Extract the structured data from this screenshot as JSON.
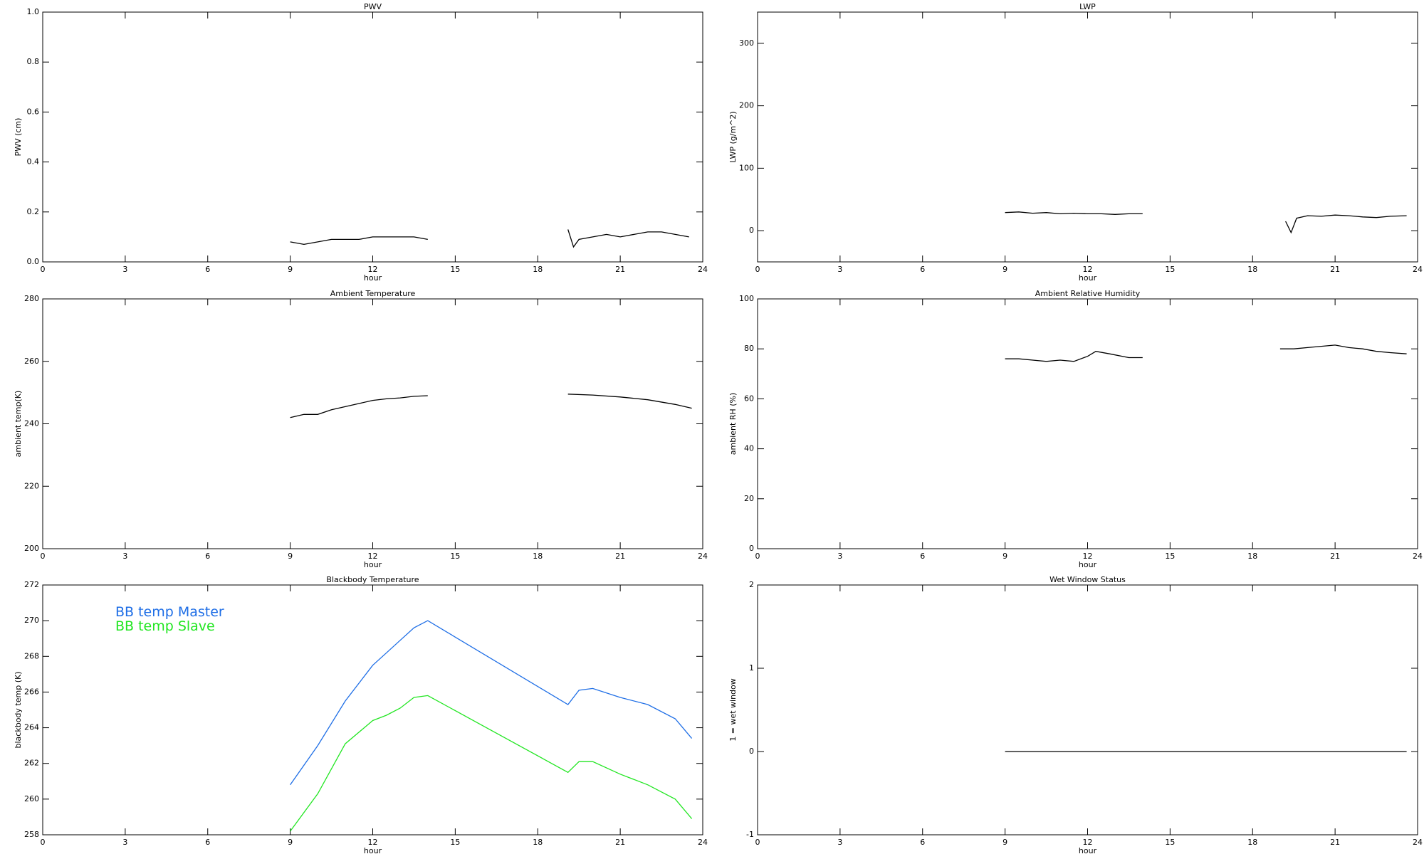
{
  "chart_data": [
    {
      "type": "line",
      "title": "PWV",
      "xlabel": "hour",
      "ylabel": "PWV (cm)",
      "xlim": [
        0,
        24
      ],
      "xticks": [
        0,
        3,
        6,
        9,
        12,
        15,
        18,
        21,
        24
      ],
      "ylim": [
        0,
        1
      ],
      "yticks": [
        {
          "value": 0,
          "label": "0.0"
        },
        0.2,
        0.4,
        0.6,
        0.8,
        {
          "value": 1,
          "label": "1.0"
        }
      ],
      "x": [
        9,
        9.5,
        10,
        10.5,
        11,
        11.5,
        12,
        12.5,
        13,
        13.5,
        14,
        16,
        19.1,
        19.3,
        19.5,
        20,
        20.5,
        21,
        21.5,
        22,
        22.5,
        23,
        23.5
      ],
      "series": [
        {
          "color": "#000000",
          "values": [
            0.08,
            0.07,
            0.08,
            0.09,
            0.09,
            0.09,
            0.1,
            0.1,
            0.1,
            0.1,
            0.09,
            null,
            0.13,
            0.06,
            0.09,
            0.1,
            0.11,
            0.1,
            0.11,
            0.12,
            0.12,
            0.11,
            0.1
          ]
        }
      ]
    },
    {
      "type": "line",
      "title": "LWP",
      "xlabel": "hour",
      "ylabel": "LWP (g/m^2)",
      "xlim": [
        0,
        24
      ],
      "xticks": [
        0,
        3,
        6,
        9,
        12,
        15,
        18,
        21,
        24
      ],
      "ylim": [
        -50,
        350
      ],
      "yticks": [
        0,
        100,
        200,
        300
      ],
      "x": [
        9,
        9.5,
        10,
        10.5,
        11,
        11.5,
        12,
        12.5,
        13,
        13.5,
        14,
        16,
        19.2,
        19.4,
        19.6,
        20,
        20.5,
        21,
        21.5,
        22,
        22.5,
        23,
        23.6
      ],
      "series": [
        {
          "color": "#000000",
          "values": [
            29,
            30,
            28,
            29,
            27,
            28,
            27,
            27,
            26,
            27,
            27,
            null,
            15,
            -3,
            20,
            24,
            23,
            25,
            24,
            22,
            21,
            23,
            24
          ]
        }
      ]
    },
    {
      "type": "line",
      "title": "Ambient Temperature",
      "xlabel": "hour",
      "ylabel": "ambient temp(K)",
      "xlim": [
        0,
        24
      ],
      "xticks": [
        0,
        3,
        6,
        9,
        12,
        15,
        18,
        21,
        24
      ],
      "ylim": [
        200,
        280
      ],
      "yticks": [
        200,
        220,
        240,
        260,
        280
      ],
      "x": [
        9,
        9.5,
        10,
        10.5,
        11,
        11.5,
        12,
        12.5,
        13,
        13.5,
        14,
        16,
        19.1,
        20,
        21,
        22,
        23,
        23.6
      ],
      "series": [
        {
          "color": "#000000",
          "values": [
            242,
            243,
            243,
            244.5,
            245.5,
            246.5,
            247.5,
            248,
            248.3,
            248.8,
            249,
            null,
            249.5,
            249.2,
            248.6,
            247.7,
            246.2,
            245
          ]
        }
      ]
    },
    {
      "type": "line",
      "title": "Ambient Relative Humidity",
      "xlabel": "hour",
      "ylabel": "ambient RH (%)",
      "xlim": [
        0,
        24
      ],
      "xticks": [
        0,
        3,
        6,
        9,
        12,
        15,
        18,
        21,
        24
      ],
      "ylim": [
        0,
        100
      ],
      "yticks": [
        0,
        20,
        40,
        60,
        80,
        100
      ],
      "x": [
        9,
        9.5,
        10,
        10.5,
        11,
        11.5,
        12,
        12.3,
        12.8,
        13.5,
        14,
        16,
        19,
        19.5,
        20,
        21,
        21.5,
        22,
        22.5,
        23,
        23.6
      ],
      "series": [
        {
          "color": "#000000",
          "values": [
            76,
            76,
            75.5,
            75,
            75.5,
            75,
            77,
            79,
            78,
            76.5,
            76.5,
            null,
            80,
            80,
            80.5,
            81.5,
            80.5,
            80,
            79,
            78.5,
            78
          ]
        }
      ]
    },
    {
      "type": "line",
      "title": "Blackbody Temperature",
      "xlabel": "hour",
      "ylabel": "blackbody temp (K)",
      "xlim": [
        0,
        24
      ],
      "xticks": [
        0,
        3,
        6,
        9,
        12,
        15,
        18,
        21,
        24
      ],
      "ylim": [
        258,
        272
      ],
      "yticks": [
        258,
        260,
        262,
        264,
        266,
        268,
        270,
        272
      ],
      "legend": "upper left",
      "x": [
        9,
        10,
        11,
        12,
        12.5,
        13,
        13.5,
        14,
        19.1,
        19.5,
        20,
        21,
        22,
        23,
        23.6
      ],
      "series": [
        {
          "name": "BB temp Master",
          "color": "#1e6ee6",
          "values": [
            260.8,
            263,
            265.5,
            267.5,
            268.2,
            268.9,
            269.6,
            270,
            265.3,
            266.1,
            266.2,
            265.7,
            265.3,
            264.5,
            263.4
          ]
        },
        {
          "name": "BB temp Slave",
          "color": "#22e622",
          "values": [
            258.2,
            260.3,
            263.1,
            264.4,
            264.7,
            265.1,
            265.7,
            265.8,
            261.5,
            262.1,
            262.1,
            261.4,
            260.8,
            260,
            258.9
          ]
        }
      ]
    },
    {
      "type": "line",
      "title": "Wet Window Status",
      "xlabel": "hour",
      "ylabel": "1 = wet window",
      "xlim": [
        0,
        24
      ],
      "xticks": [
        0,
        3,
        6,
        9,
        12,
        15,
        18,
        21,
        24
      ],
      "ylim": [
        -1,
        2
      ],
      "yticks": [
        -1,
        0,
        1,
        2
      ],
      "x": [
        9,
        23.6
      ],
      "series": [
        {
          "color": "#000000",
          "values": [
            0,
            0
          ]
        }
      ]
    }
  ]
}
